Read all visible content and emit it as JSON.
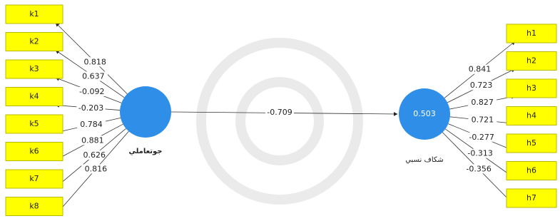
{
  "nodes": {
    "left_construct": {
      "label": "جوتعاملي"
    },
    "right_construct": {
      "label": "شكاف نسبي",
      "value": "0.503"
    },
    "left_indicators": [
      {
        "label": "k1",
        "loading": "0.818"
      },
      {
        "label": "k2",
        "loading": "0.637"
      },
      {
        "label": "k3",
        "loading": "-0.092"
      },
      {
        "label": "k4",
        "loading": "-0.203"
      },
      {
        "label": "k5",
        "loading": "0.784"
      },
      {
        "label": "k6",
        "loading": "0.881"
      },
      {
        "label": "k7",
        "loading": "0.626"
      },
      {
        "label": "k8",
        "loading": "0.816"
      }
    ],
    "right_indicators": [
      {
        "label": "h1",
        "loading": "0.841"
      },
      {
        "label": "h2",
        "loading": "0.723"
      },
      {
        "label": "h3",
        "loading": "0.827"
      },
      {
        "label": "h4",
        "loading": "0.721"
      },
      {
        "label": "h5",
        "loading": "-0.277"
      },
      {
        "label": "h6",
        "loading": "-0.313"
      },
      {
        "label": "h7",
        "loading": "-0.356"
      }
    ]
  },
  "path": {
    "coefficient": "-0.709"
  }
}
